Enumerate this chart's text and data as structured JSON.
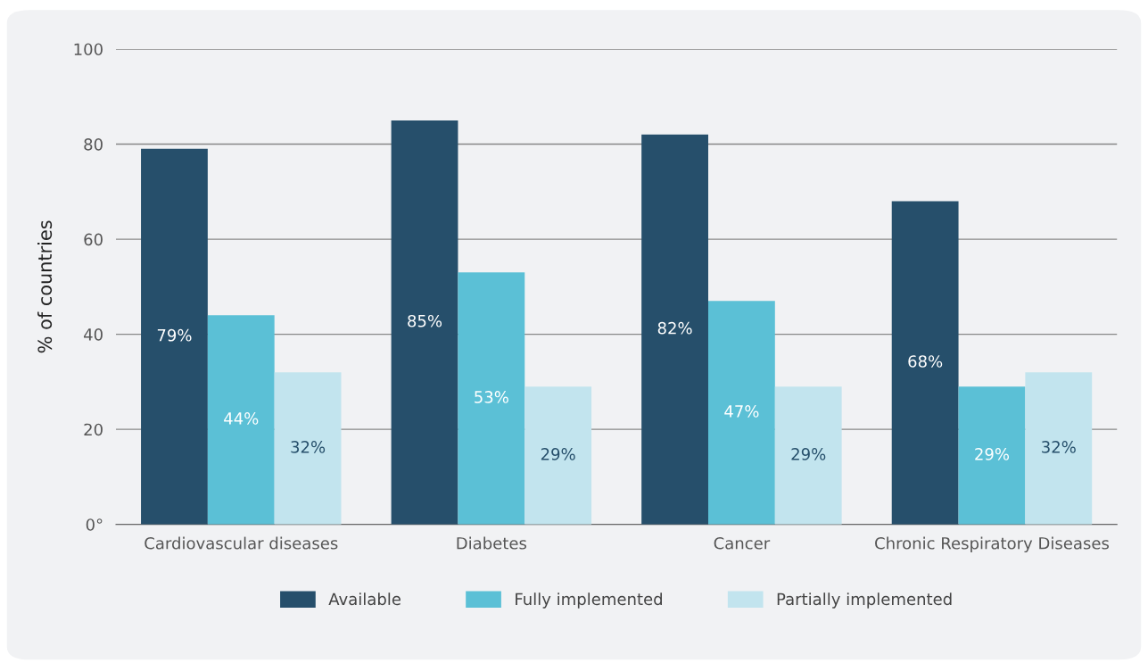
{
  "chart_data": {
    "type": "bar",
    "ylabel": "% of countries",
    "categories": [
      "Cardiovascular diseases",
      "Diabetes",
      "Cancer",
      "Chronic Respiratory Diseases"
    ],
    "series": [
      {
        "name": "Available",
        "color": "#264f6b",
        "values": [
          79,
          85,
          82,
          68
        ],
        "value_labels": [
          "79%",
          "85%",
          "82%",
          "68%"
        ]
      },
      {
        "name": "Fully implemented",
        "color": "#5bc0d6",
        "values": [
          44,
          53,
          47,
          29
        ],
        "value_labels": [
          "44%",
          "53%",
          "47%",
          "29%"
        ]
      },
      {
        "name": "Partially implemented",
        "color": "#c2e4ee",
        "values": [
          32,
          29,
          29,
          32
        ],
        "value_labels": [
          "32%",
          "29%",
          "29%",
          "32%"
        ]
      }
    ],
    "ylim": [
      0,
      100
    ],
    "yticks": [
      {
        "value": 0,
        "label": "0°"
      },
      20,
      40,
      60,
      80,
      100
    ],
    "grid": "y",
    "legend": "bottom"
  }
}
